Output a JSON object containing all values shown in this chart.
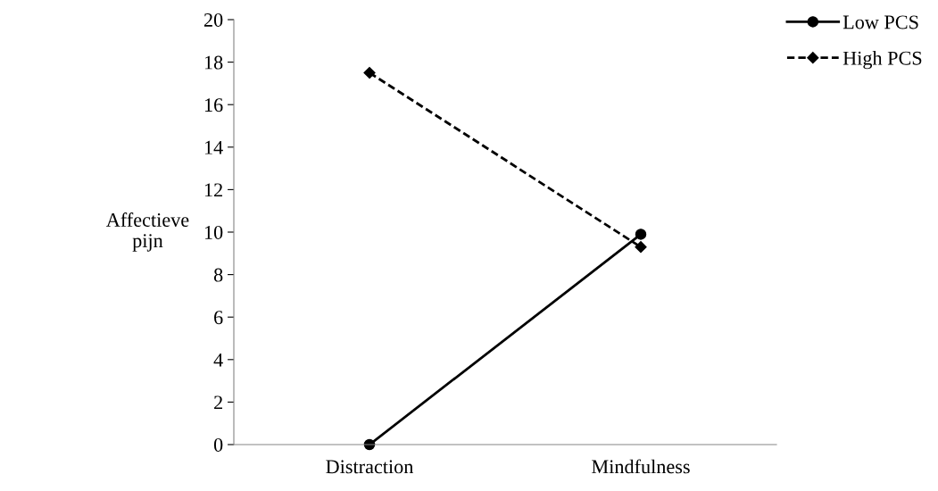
{
  "chart_data": {
    "type": "line",
    "ylabel": "Affectieve\npijn",
    "categories": [
      "Distraction",
      "Mindfulness"
    ],
    "series": [
      {
        "name": "Low PCS",
        "color": "#000000",
        "values": [
          0,
          9.9
        ],
        "marker": "circle",
        "line_style": "solid"
      },
      {
        "name": "High PCS",
        "color": "#000000",
        "values": [
          17.5,
          9.3
        ],
        "marker": "diamond",
        "line_style": "dashed"
      }
    ],
    "ylim": [
      0,
      20
    ],
    "yticks": [
      0,
      2,
      4,
      6,
      8,
      10,
      12,
      14,
      16,
      18,
      20
    ],
    "grid": false,
    "legend": "top right"
  }
}
